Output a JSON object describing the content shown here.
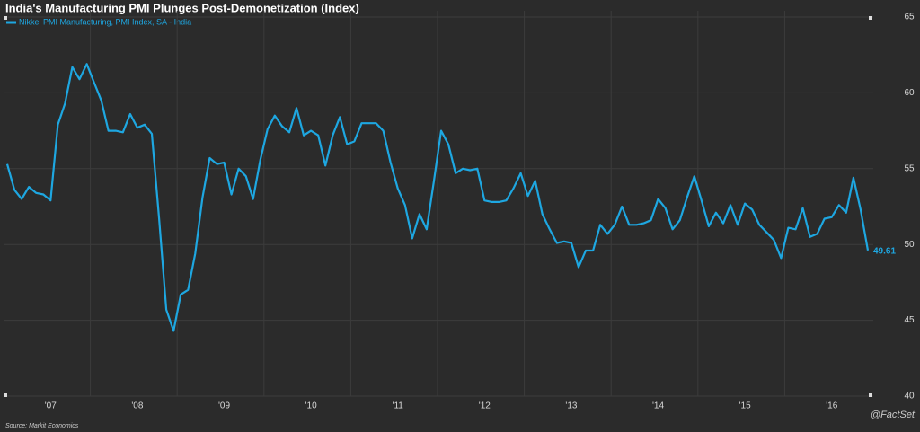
{
  "chart_data": {
    "type": "line",
    "title": "India's Manufacturing PMI Plunges Post-Demonetization (Index)",
    "source": "Source: Markit Economics",
    "credit": "@FactSet",
    "categories": [
      null,
      null,
      null,
      null,
      null,
      null,
      "'07",
      null,
      null,
      null,
      null,
      null,
      null,
      null,
      null,
      null,
      null,
      null,
      "'08",
      null,
      null,
      null,
      null,
      null,
      null,
      null,
      null,
      null,
      null,
      null,
      "'09",
      null,
      null,
      null,
      null,
      null,
      null,
      null,
      null,
      null,
      null,
      null,
      "'10",
      null,
      null,
      null,
      null,
      null,
      null,
      null,
      null,
      null,
      null,
      null,
      "'11",
      null,
      null,
      null,
      null,
      null,
      null,
      null,
      null,
      null,
      null,
      null,
      "'12",
      null,
      null,
      null,
      null,
      null,
      null,
      null,
      null,
      null,
      null,
      null,
      "'13",
      null,
      null,
      null,
      null,
      null,
      null,
      null,
      null,
      null,
      null,
      null,
      "'14",
      null,
      null,
      null,
      null,
      null,
      null,
      null,
      null,
      null,
      null,
      null,
      "'15",
      null,
      null,
      null,
      null,
      null,
      null,
      null,
      null,
      null,
      null,
      null,
      "'16",
      null,
      null,
      null,
      null,
      null
    ],
    "series": [
      {
        "name": "Nikkei PMI Manufacturing, PMI Index, SA - India",
        "color": "#1ea7e1",
        "values": [
          55.3,
          53.6,
          53.0,
          53.8,
          53.4,
          53.3,
          52.9,
          57.9,
          59.3,
          61.7,
          60.9,
          61.9,
          60.7,
          59.5,
          57.5,
          57.5,
          57.4,
          58.6,
          57.7,
          57.9,
          57.3,
          51.7,
          45.7,
          44.3,
          46.7,
          47.0,
          49.4,
          53.1,
          55.7,
          55.3,
          55.4,
          53.3,
          55.0,
          54.5,
          53.0,
          55.6,
          57.6,
          58.5,
          57.8,
          57.4,
          59.0,
          57.2,
          57.5,
          57.2,
          55.2,
          57.2,
          58.4,
          56.6,
          56.8,
          58.0,
          58.0,
          58.0,
          57.5,
          55.4,
          53.7,
          52.6,
          50.4,
          52.0,
          51.0,
          54.2,
          57.5,
          56.6,
          54.7,
          55.0,
          54.9,
          55.0,
          52.9,
          52.8,
          52.8,
          52.9,
          53.7,
          54.7,
          53.2,
          54.2,
          52.0,
          51.0,
          50.1,
          50.2,
          50.1,
          48.5,
          49.6,
          49.6,
          51.3,
          50.7,
          51.3,
          52.5,
          51.3,
          51.3,
          51.4,
          51.6,
          53.0,
          52.4,
          51.0,
          51.6,
          53.1,
          54.5,
          52.9,
          51.2,
          52.1,
          51.4,
          52.6,
          51.3,
          52.7,
          52.3,
          51.3,
          50.8,
          50.3,
          49.1,
          51.1,
          51.0,
          52.4,
          50.5,
          50.7,
          51.7,
          51.8,
          52.6,
          52.1,
          54.4,
          52.3,
          49.61
        ]
      }
    ],
    "ylim": [
      40,
      65
    ],
    "yticks": [
      40,
      45,
      50,
      55,
      60,
      65
    ],
    "grid": true,
    "legend": "top-left"
  }
}
